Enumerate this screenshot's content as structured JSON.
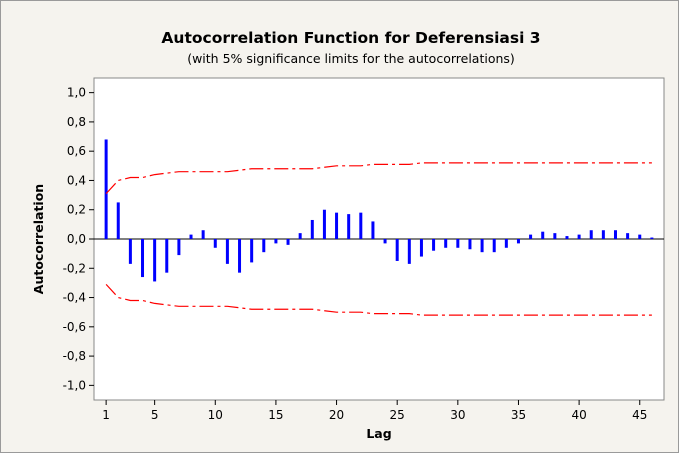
{
  "chart_data": {
    "type": "bar",
    "title": "Autocorrelation Function for Deferensiasi 3",
    "subtitle": "(with 5% significance limits for the autocorrelations)",
    "xlabel": "Lag",
    "ylabel": "Autocorrelation",
    "ylim": [
      -1.1,
      1.1
    ],
    "xlim": [
      0,
      47
    ],
    "y_ticks": [
      "1,0",
      "0,8",
      "0,6",
      "0,4",
      "0,2",
      "0,0",
      "-0,2",
      "-0,4",
      "-0,6",
      "-0,8",
      "-1,0"
    ],
    "y_tick_values": [
      1.0,
      0.8,
      0.6,
      0.4,
      0.2,
      0.0,
      -0.2,
      -0.4,
      -0.6,
      -0.8,
      -1.0
    ],
    "x_ticks": [
      "1",
      "5",
      "10",
      "15",
      "20",
      "25",
      "30",
      "35",
      "40",
      "45"
    ],
    "x_tick_values": [
      1,
      5,
      10,
      15,
      20,
      25,
      30,
      35,
      40,
      45
    ],
    "lags": [
      1,
      2,
      3,
      4,
      5,
      6,
      7,
      8,
      9,
      10,
      11,
      12,
      13,
      14,
      15,
      16,
      17,
      18,
      19,
      20,
      21,
      22,
      23,
      24,
      25,
      26,
      27,
      28,
      29,
      30,
      31,
      32,
      33,
      34,
      35,
      36,
      37,
      38,
      39,
      40,
      41,
      42,
      43,
      44,
      45,
      46
    ],
    "values": [
      0.68,
      0.25,
      -0.17,
      -0.26,
      -0.29,
      -0.23,
      -0.11,
      0.03,
      0.06,
      -0.06,
      -0.17,
      -0.23,
      -0.16,
      -0.09,
      -0.03,
      -0.04,
      0.04,
      0.13,
      0.2,
      0.18,
      0.17,
      0.18,
      0.12,
      -0.03,
      -0.15,
      -0.17,
      -0.12,
      -0.08,
      -0.06,
      -0.06,
      -0.07,
      -0.09,
      -0.09,
      -0.06,
      -0.03,
      0.03,
      0.05,
      0.04,
      0.02,
      0.03,
      0.06,
      0.06,
      0.06,
      0.04,
      0.03,
      0.01
    ],
    "significance_limit_upper": [
      0.31,
      0.4,
      0.42,
      0.42,
      0.44,
      0.45,
      0.46,
      0.46,
      0.46,
      0.46,
      0.46,
      0.47,
      0.48,
      0.48,
      0.48,
      0.48,
      0.48,
      0.48,
      0.49,
      0.5,
      0.5,
      0.5,
      0.51,
      0.51,
      0.51,
      0.51,
      0.52,
      0.52,
      0.52,
      0.52,
      0.52,
      0.52,
      0.52,
      0.52,
      0.52,
      0.52,
      0.52,
      0.52,
      0.52,
      0.52,
      0.52,
      0.52,
      0.52,
      0.52,
      0.52,
      0.52
    ],
    "colors": {
      "bars": "#0000ff",
      "limits": "#ff0000",
      "zero_line": "#000000",
      "background": "#f5f3ee",
      "plot_area": "#ffffff"
    },
    "grid": false,
    "legend": "none"
  }
}
